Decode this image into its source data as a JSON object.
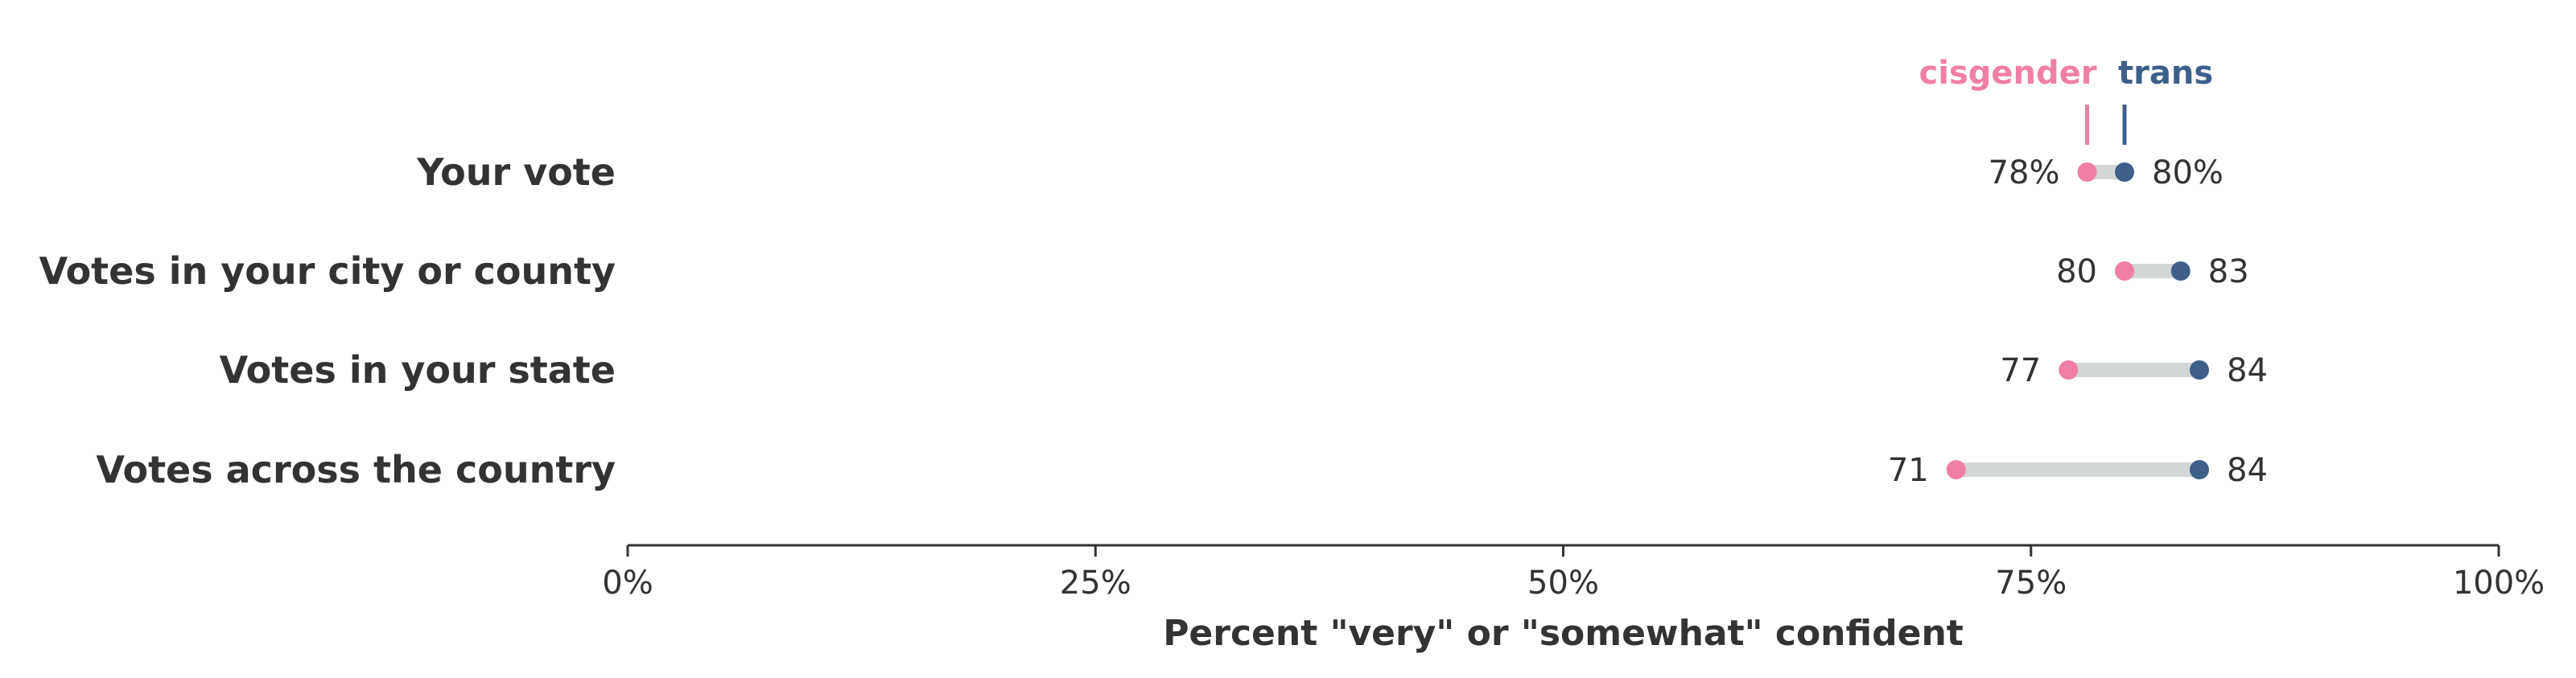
{
  "chart_data": {
    "type": "dumbbell",
    "categories": [
      "Your vote",
      "Votes in your city or county",
      "Votes in your state",
      "Votes across the country"
    ],
    "series": [
      {
        "name": "cisgender",
        "color": "#F07FA8",
        "values": [
          78,
          80,
          77,
          71
        ],
        "labels": [
          "78%",
          "80",
          "77",
          "71"
        ]
      },
      {
        "name": "trans",
        "color": "#3E5F8A",
        "values": [
          80,
          83,
          84,
          84
        ],
        "labels": [
          "80%",
          "83",
          "84",
          "84"
        ]
      }
    ],
    "connector_color": "#D3D6D6",
    "xlim": [
      0,
      100
    ],
    "xticks": [
      0,
      25,
      50,
      75,
      100
    ],
    "xtick_labels": [
      "0%",
      "25%",
      "50%",
      "75%",
      "100%"
    ],
    "xlabel": "Percent \"very\" or \"somewhat\" confident",
    "legend_placement": "above first row, next to markers"
  }
}
